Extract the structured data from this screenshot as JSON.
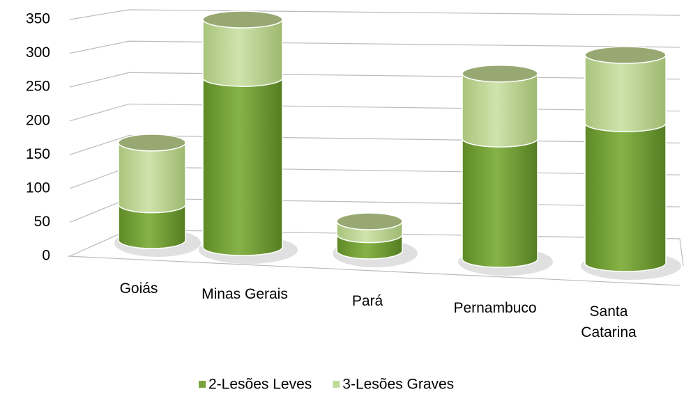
{
  "chart_data": {
    "type": "bar3d-stacked",
    "categories": [
      "Goiás",
      "Minas Gerais",
      "Pará",
      "Pernambuco",
      "Santa Catarina"
    ],
    "series": [
      {
        "name": "2-Lesões Leves",
        "color": "#78a33b",
        "values": [
          55,
          260,
          25,
          185,
          215
        ]
      },
      {
        "name": "3-Lesões Graves",
        "color": "#c2d99a",
        "values": [
          95,
          90,
          20,
          100,
          105
        ]
      }
    ],
    "ylim": [
      0,
      350
    ],
    "yticks": [
      0,
      50,
      100,
      150,
      200,
      250,
      300,
      350
    ],
    "grid": true,
    "legend": "bottom"
  }
}
